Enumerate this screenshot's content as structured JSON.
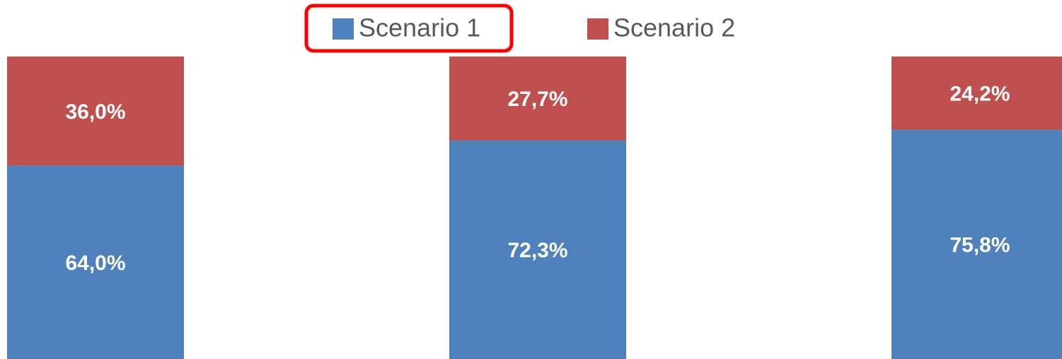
{
  "chart_data": {
    "type": "stacked_bar",
    "categories": [
      null,
      null,
      null
    ],
    "series": [
      {
        "name": "Scenario 1",
        "color": "#4f81bd",
        "values": [
          64.0,
          72.3,
          75.8
        ],
        "value_labels": [
          "64,0%",
          "72,3%",
          "75,8%"
        ]
      },
      {
        "name": "Scenario 2",
        "color": "#c0504d",
        "values": [
          36.0,
          27.7,
          24.2
        ],
        "value_labels": [
          "36,0%",
          "27,7%",
          "24,2%"
        ]
      }
    ],
    "ylim": [
      0,
      100
    ],
    "legend": "top"
  }
}
